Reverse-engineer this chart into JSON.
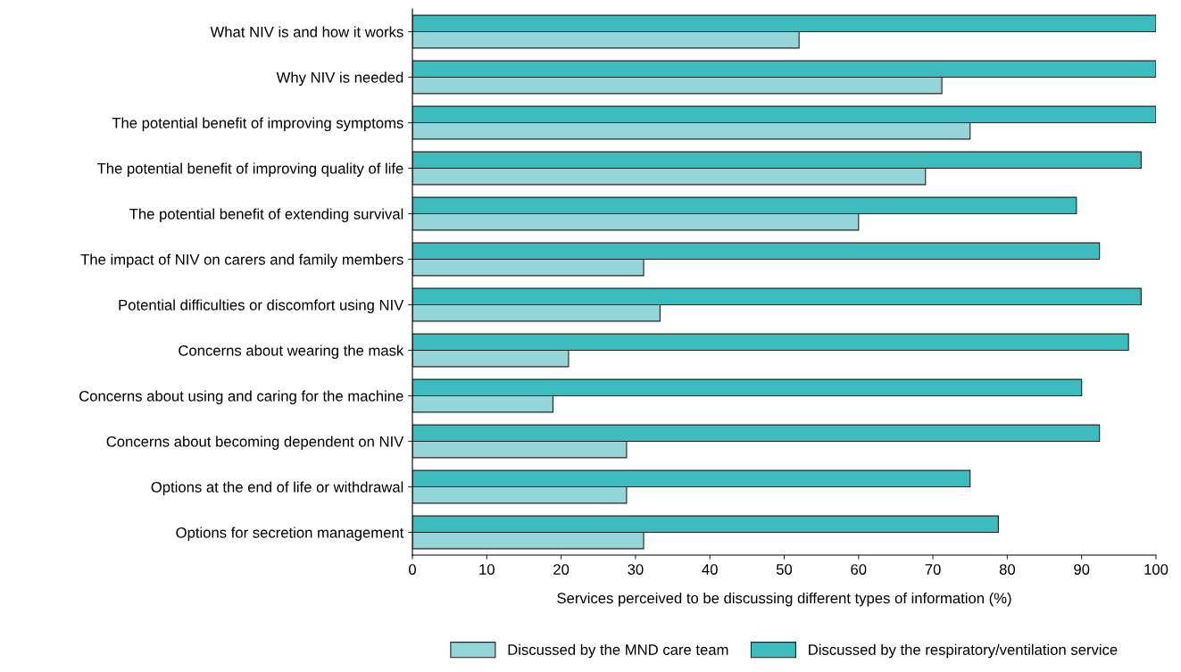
{
  "chart_data": {
    "type": "bar",
    "orientation": "horizontal",
    "xlabel": "Services perceived to be discussing different types of information (%)",
    "categories": [
      "What NIV is and how it works",
      "Why NIV is needed",
      "The potential benefit of improving symptoms",
      "The potential benefit of improving quality of life",
      "The potential benefit of extending survival",
      "The impact of NIV on carers and family members",
      "Potential difficulties or discomfort using NIV",
      "Concerns about wearing the mask",
      "Concerns about using and caring for the machine",
      "Concerns about becoming dependent on NIV",
      "Options at the end of life or withdrawal",
      "Options for secretion management"
    ],
    "series": [
      {
        "name": "Discussed by the MND care team",
        "color": "#93d5d8",
        "values": [
          52,
          71.2,
          75,
          69,
          60,
          31.1,
          33.3,
          21,
          18.9,
          28.8,
          28.8,
          31.1
        ]
      },
      {
        "name": "Discussed by the respiratory/ventilation service",
        "color": "#3dbcc0",
        "values": [
          100,
          100,
          100,
          98,
          89.3,
          92.4,
          98,
          96.3,
          90,
          92.4,
          75,
          78.8
        ]
      }
    ],
    "xlim": [
      0,
      100
    ],
    "xticks": [
      0,
      10,
      20,
      30,
      40,
      50,
      60,
      70,
      80,
      90,
      100
    ],
    "grid": false,
    "legend": "bottom"
  }
}
